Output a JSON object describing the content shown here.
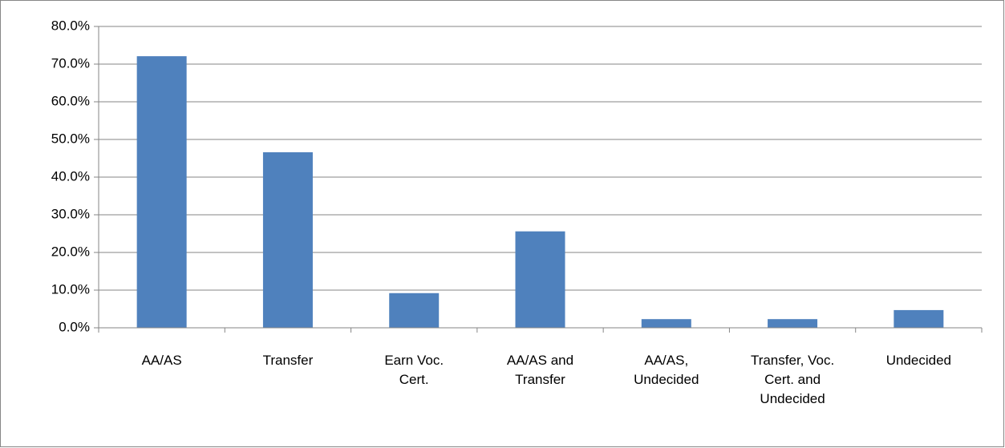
{
  "chart_data": {
    "type": "bar",
    "categories": [
      "AA/AS",
      "Transfer",
      "Earn Voc. Cert.",
      "AA/AS and Transfer",
      "AA/AS, Undecided",
      "Transfer, Voc. Cert. and Undecided",
      "Undecided"
    ],
    "values": [
      72.1,
      46.6,
      9.2,
      25.6,
      2.3,
      2.3,
      4.7
    ],
    "color": "#4f81bd",
    "ylim": [
      0,
      80
    ],
    "yticks": [
      {
        "value": 0,
        "label": "0.0%"
      },
      {
        "value": 10,
        "label": "10.0%"
      },
      {
        "value": 20,
        "label": "20.0%"
      },
      {
        "value": 30,
        "label": "30.0%"
      },
      {
        "value": 40,
        "label": "40.0%"
      },
      {
        "value": 50,
        "label": "50.0%"
      },
      {
        "value": 60,
        "label": "60.0%"
      },
      {
        "value": 70,
        "label": "70.0%"
      },
      {
        "value": 80,
        "label": "80.0%"
      }
    ],
    "grid": true
  }
}
